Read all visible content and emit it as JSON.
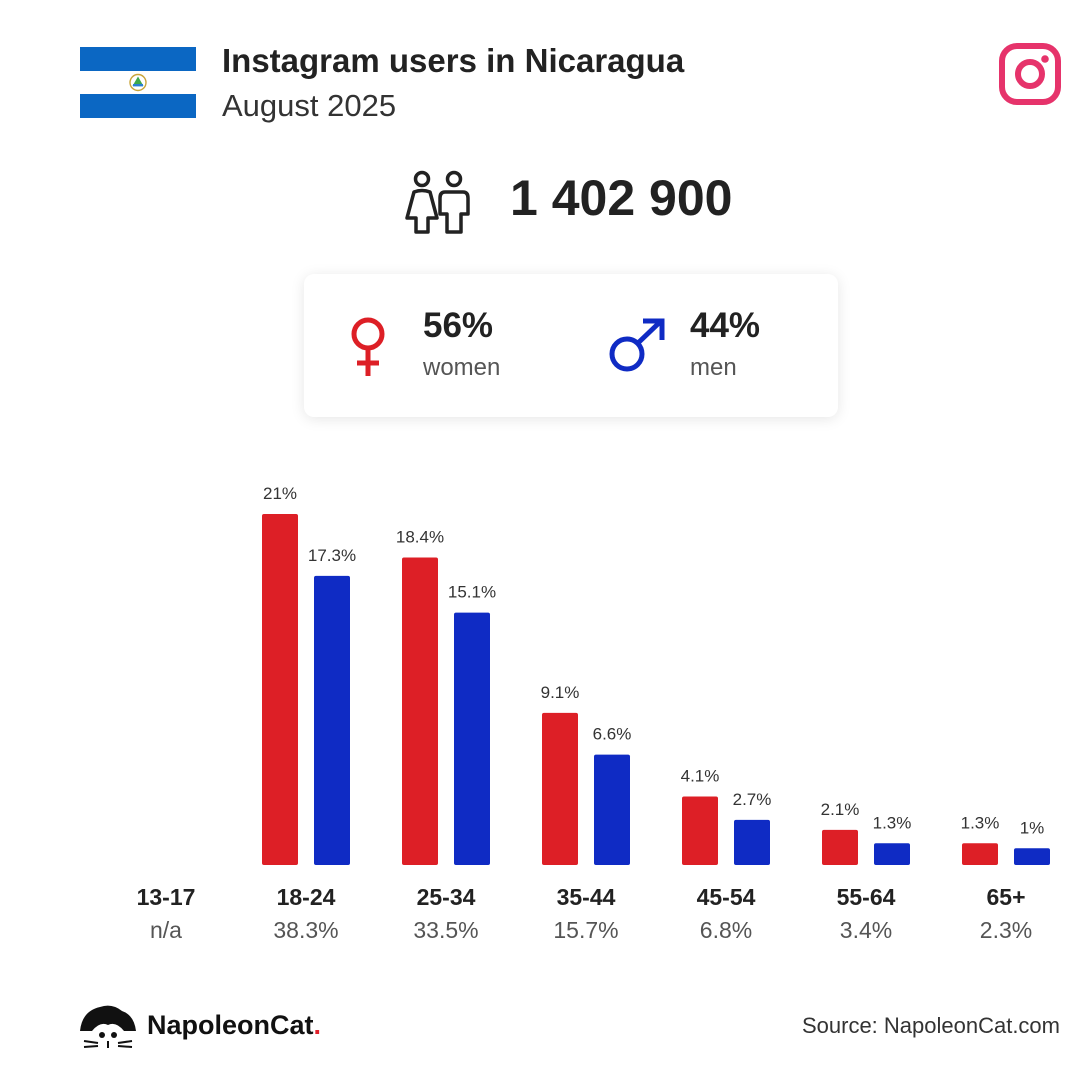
{
  "header": {
    "title": "Instagram users in Nicaragua",
    "subtitle": "August 2025"
  },
  "total_users": "1 402 900",
  "gender": {
    "women_pct": "56%",
    "women_label": "women",
    "men_pct": "44%",
    "men_label": "men"
  },
  "colors": {
    "women": "#dd1f26",
    "men": "#0f2bc4",
    "instagram": "#e6336b",
    "flag_blue": "#0b67c3"
  },
  "chart_data": {
    "type": "bar",
    "categories": [
      "13-17",
      "18-24",
      "25-34",
      "35-44",
      "45-54",
      "55-64",
      "65+"
    ],
    "category_shares": [
      "n/a",
      "38.3%",
      "33.5%",
      "15.7%",
      "6.8%",
      "3.4%",
      "2.3%"
    ],
    "series": [
      {
        "name": "women",
        "values": [
          null,
          21,
          18.4,
          9.1,
          4.1,
          2.1,
          1.3
        ],
        "labels": [
          "",
          "21%",
          "18.4%",
          "9.1%",
          "4.1%",
          "2.1%",
          "1.3%"
        ]
      },
      {
        "name": "men",
        "values": [
          null,
          17.3,
          15.1,
          6.6,
          2.7,
          1.3,
          1
        ],
        "labels": [
          "",
          "17.3%",
          "15.1%",
          "6.6%",
          "2.7%",
          "1.3%",
          "1%"
        ]
      }
    ],
    "title": "",
    "xlabel": "",
    "ylabel": "",
    "ylim": [
      0,
      21
    ],
    "grid": false
  },
  "footer": {
    "brand": "NapoleonCat",
    "brand_dot": ".",
    "source": "Source: NapoleonCat.com"
  },
  "icons": [
    "nicaragua-flag-icon",
    "instagram-icon",
    "users-icon",
    "female-symbol-icon",
    "male-symbol-icon",
    "napoleoncat-logo-icon"
  ]
}
